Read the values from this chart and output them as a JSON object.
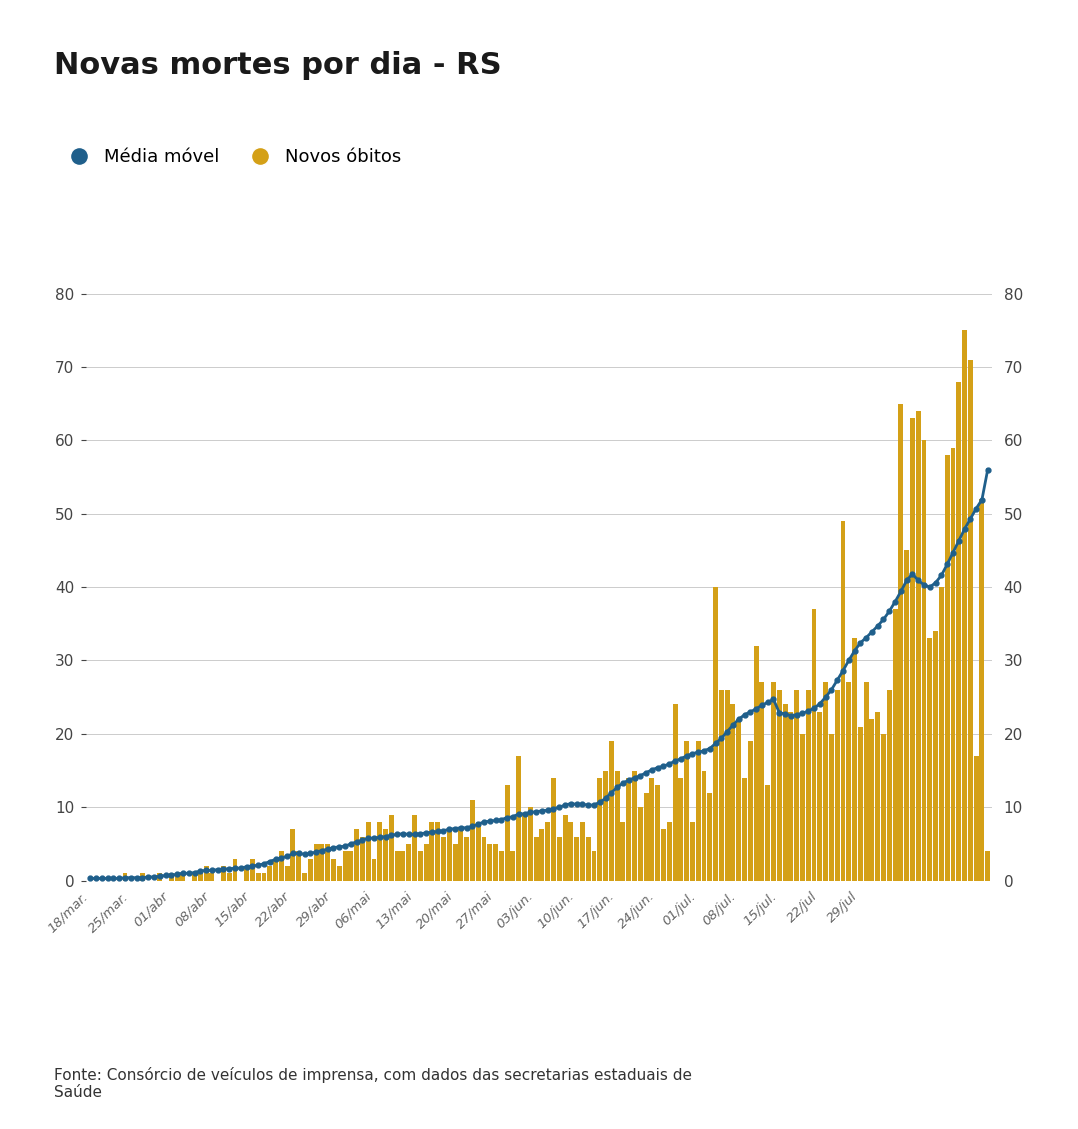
{
  "title": "Novas mortes por dia - RS",
  "legend_labels": [
    "Média móvel",
    "Novos óbitos"
  ],
  "line_color": "#1f5f8b",
  "bar_color": "#d4a017",
  "source_text": "Fonte: Consórcio de veículos de imprensa, com dados das secretarias estaduais de\nSaúde",
  "ylim": [
    0,
    80
  ],
  "yticks": [
    0,
    10,
    20,
    30,
    40,
    50,
    60,
    70,
    80
  ],
  "x_tick_labels": [
    "18/mar.",
    "25/mar.",
    "01/abr",
    "08/abr",
    "15/abr",
    "22/abr",
    "29/abr",
    "06/mai",
    "13/mai",
    "20/mai",
    "27/mai",
    "03/jun.",
    "10/jun.",
    "17/jun.",
    "24/jun.",
    "01/jul.",
    "08/jul.",
    "15/jul.",
    "22/jul",
    "29/jul"
  ],
  "bar_values": [
    0,
    0,
    0,
    0,
    0,
    0,
    1,
    0,
    0,
    1,
    0,
    0,
    1,
    0,
    1,
    1,
    1,
    0,
    1,
    1,
    2,
    1,
    0,
    2,
    1,
    3,
    0,
    2,
    3,
    1,
    1,
    2,
    3,
    4,
    2,
    7,
    4,
    1,
    3,
    5,
    5,
    5,
    3,
    2,
    4,
    4,
    7,
    6,
    8,
    3,
    8,
    7,
    9,
    4,
    4,
    5,
    9,
    4,
    5,
    8,
    8,
    6,
    7,
    5,
    7,
    6,
    11,
    8,
    6,
    5,
    5,
    4,
    13,
    4,
    17,
    9,
    10,
    6,
    7,
    8,
    14,
    6,
    9,
    8,
    6,
    8,
    6,
    4,
    14,
    15,
    19,
    15,
    8,
    14,
    15,
    10,
    12,
    14,
    13,
    7,
    8,
    24,
    14,
    19,
    8,
    19,
    15,
    12,
    40,
    26,
    26,
    24,
    22,
    14,
    19,
    32,
    27,
    13,
    27,
    26,
    24,
    23,
    26,
    20,
    26,
    37,
    23,
    27,
    20,
    26,
    49,
    27,
    33,
    21,
    27,
    22,
    23,
    20,
    26,
    37,
    65,
    45,
    63,
    64,
    60,
    33,
    34,
    40,
    58,
    59,
    68,
    75,
    71,
    17,
    52,
    4
  ],
  "moving_avg": [
    0.3,
    0.3,
    0.3,
    0.3,
    0.3,
    0.3,
    0.4,
    0.4,
    0.4,
    0.4,
    0.5,
    0.5,
    0.6,
    0.7,
    0.7,
    0.9,
    1.0,
    1.0,
    1.1,
    1.3,
    1.4,
    1.4,
    1.5,
    1.6,
    1.6,
    1.7,
    1.7,
    1.9,
    2.0,
    2.1,
    2.3,
    2.6,
    2.9,
    3.1,
    3.3,
    3.7,
    3.7,
    3.6,
    3.7,
    3.9,
    4.1,
    4.3,
    4.5,
    4.6,
    4.7,
    5.0,
    5.3,
    5.5,
    5.8,
    5.8,
    5.9,
    6.0,
    6.2,
    6.3,
    6.4,
    6.3,
    6.3,
    6.4,
    6.5,
    6.6,
    6.7,
    6.8,
    7.0,
    7.1,
    7.2,
    7.2,
    7.4,
    7.7,
    8.0,
    8.1,
    8.2,
    8.3,
    8.6,
    8.7,
    9.1,
    9.1,
    9.3,
    9.4,
    9.5,
    9.6,
    9.8,
    10.0,
    10.3,
    10.5,
    10.4,
    10.4,
    10.3,
    10.3,
    10.7,
    11.2,
    12.0,
    12.7,
    13.3,
    13.7,
    14.0,
    14.3,
    14.7,
    15.1,
    15.4,
    15.6,
    15.9,
    16.3,
    16.6,
    17.0,
    17.3,
    17.5,
    17.7,
    18.0,
    18.7,
    19.4,
    20.3,
    21.2,
    22.0,
    22.6,
    23.0,
    23.4,
    23.9,
    24.3,
    24.7,
    22.9,
    22.7,
    22.5,
    22.6,
    22.8,
    23.1,
    23.5,
    24.1,
    25.0,
    26.0,
    27.3,
    28.6,
    30.0,
    31.3,
    32.4,
    33.1,
    33.9,
    34.7,
    35.6,
    36.7,
    38.0,
    39.4,
    40.9,
    41.8,
    40.9,
    40.3,
    40.0,
    40.6,
    41.6,
    43.1,
    44.7,
    46.3,
    47.9,
    49.3,
    50.7,
    51.9,
    56.0
  ],
  "fig_width": 10.78,
  "fig_height": 11.29,
  "dpi": 100
}
